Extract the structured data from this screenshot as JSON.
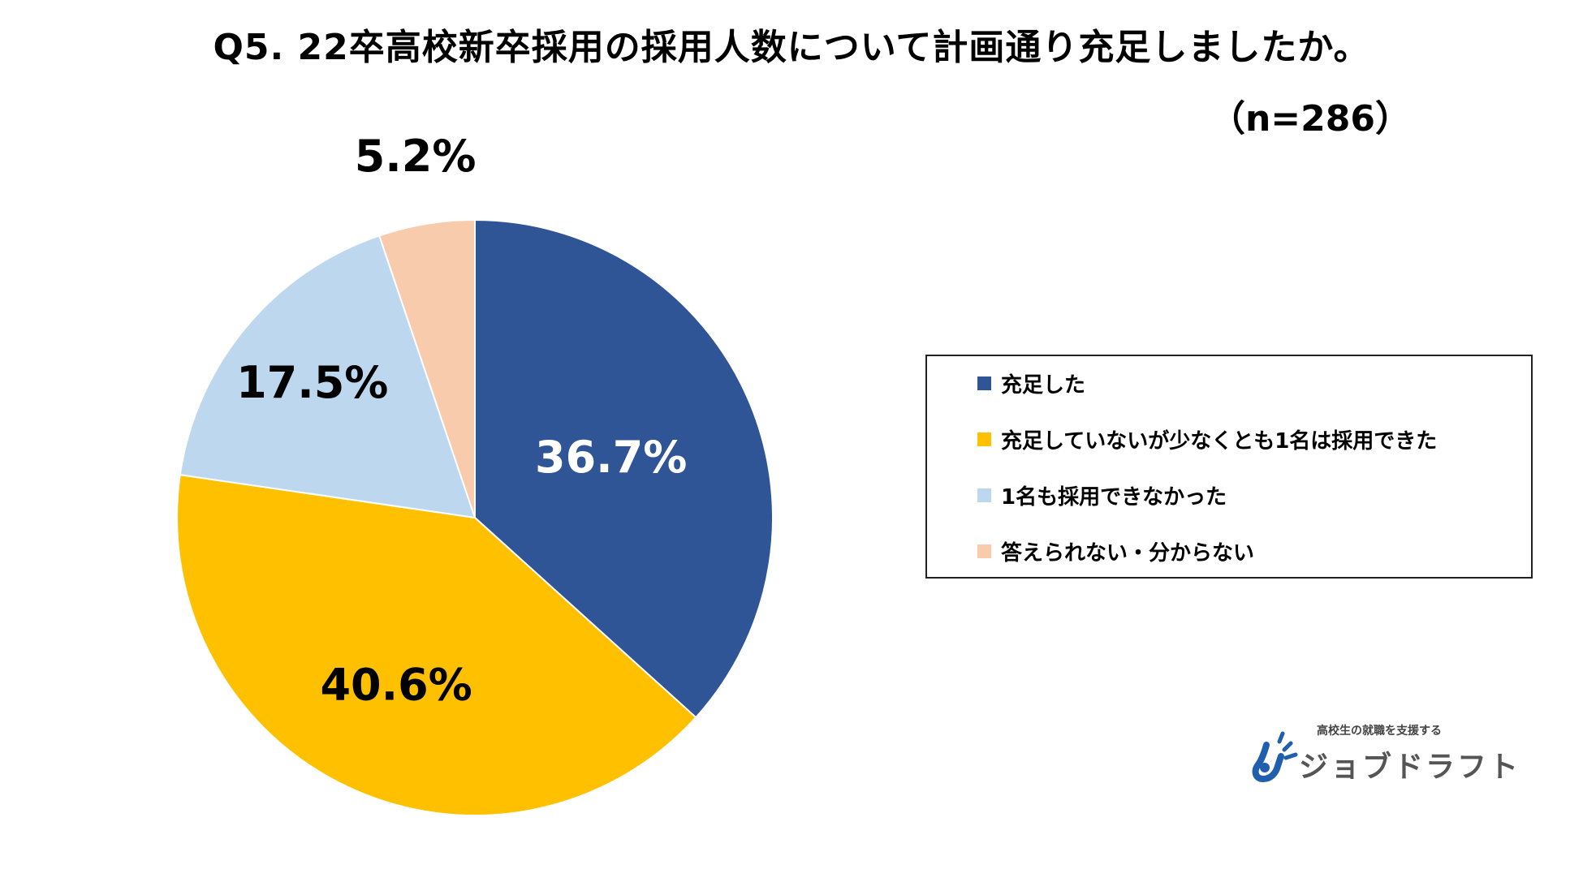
{
  "chart_data": {
    "type": "pie",
    "title": "Q5. 22卒高校新卒採用の採用人数について計画通り充足しましたか。",
    "subtitle": "（n=286）",
    "slices": [
      {
        "name": "充足した",
        "value": 36.7,
        "label": "36.7%",
        "color": "#2F5597",
        "label_color": "#ffffff"
      },
      {
        "name": "充足していないが少なくとも1名は採用できた",
        "value": 40.6,
        "label": "40.6%",
        "color": "#FFC000",
        "label_color": "#000000"
      },
      {
        "name": "1名も採用できなかった",
        "value": 17.5,
        "label": "17.5%",
        "color": "#BDD7EE",
        "label_color": "#000000"
      },
      {
        "name": "答えられない・分からない",
        "value": 5.2,
        "label": "5.2%",
        "color": "#F8CBAD",
        "label_color": "#000000"
      }
    ],
    "start_angle": "12 o'clock",
    "direction": "clockwise",
    "legend_placement": "right"
  },
  "logo": {
    "tagline": "高校生の就職を支援する",
    "name": "ジョブドラフト",
    "icon": "job-draft-logo-icon",
    "color": "#1F5FAD"
  }
}
